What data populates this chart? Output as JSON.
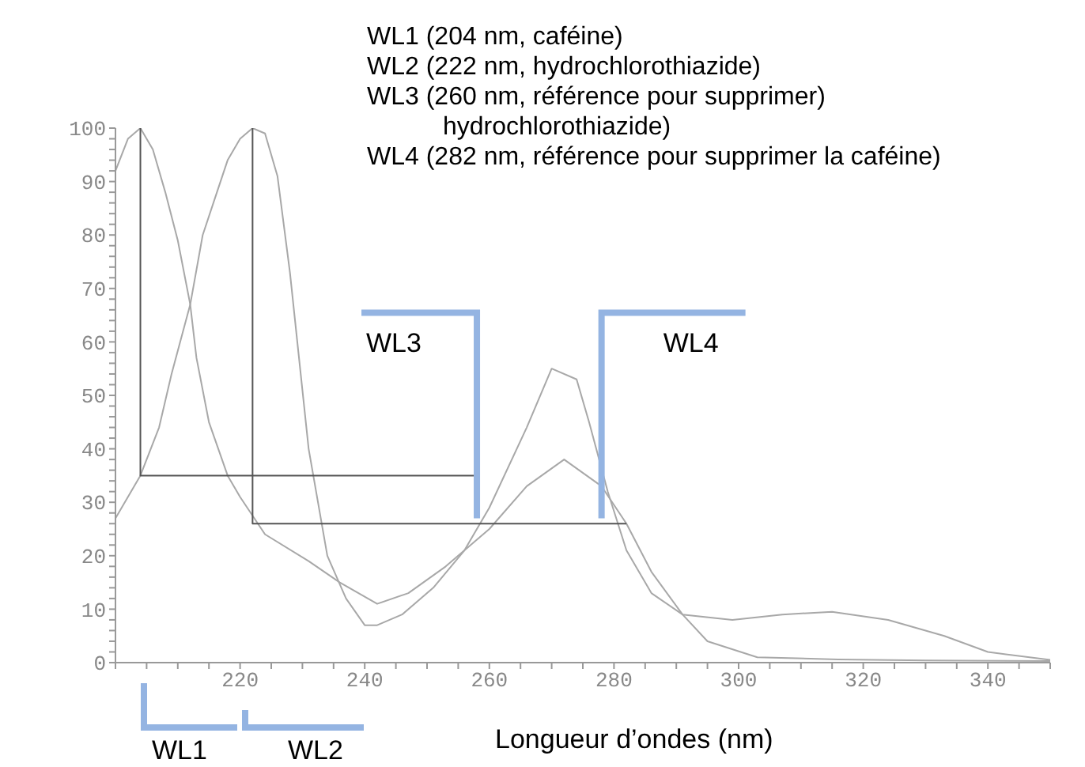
{
  "chart_data": {
    "type": "line",
    "xlabel": "Longueur d’ondes (nm)",
    "marker": "none",
    "grid": false,
    "annotations": [
      "WL1 (204 nm, caféine)\nWL2 (222 nm, hydrochlorothiazide)\nWL3 (260 nm, référence pour supprimer)\nhydrochlorothiazide)\nWL4 (282 nm, référence pour supprimer la caféine)",
      {
        "text": "WL3",
        "x": 258,
        "y": 27
      },
      {
        "text": "WL4",
        "x": 278,
        "y": 27
      },
      "WL1",
      "WL2"
    ],
    "xlim": [
      200,
      350
    ],
    "xticks": [
      {
        "value": 200,
        "label": null
      },
      {
        "value": 205,
        "label": null
      },
      {
        "value": 210,
        "label": null
      },
      {
        "value": 215,
        "label": null
      },
      220,
      {
        "value": 225,
        "label": null
      },
      {
        "value": 230,
        "label": null
      },
      {
        "value": 235,
        "label": null
      },
      240,
      {
        "value": 245,
        "label": null
      },
      {
        "value": 250,
        "label": null
      },
      {
        "value": 255,
        "label": null
      },
      260,
      {
        "value": 265,
        "label": null
      },
      {
        "value": 270,
        "label": null
      },
      {
        "value": 275,
        "label": null
      },
      280,
      {
        "value": 285,
        "label": null
      },
      {
        "value": 290,
        "label": null
      },
      {
        "value": 295,
        "label": null
      },
      300,
      {
        "value": 305,
        "label": null
      },
      {
        "value": 310,
        "label": null
      },
      {
        "value": 315,
        "label": null
      },
      320,
      {
        "value": 325,
        "label": null
      },
      {
        "value": 330,
        "label": null
      },
      {
        "value": 335,
        "label": null
      },
      340,
      {
        "value": 345,
        "label": null
      },
      {
        "value": 350,
        "label": null
      }
    ],
    "ylim": [
      0,
      100
    ],
    "yticks": [
      0,
      {
        "value": 2,
        "label": null
      },
      {
        "value": 4,
        "label": null
      },
      {
        "value": 6,
        "label": null
      },
      {
        "value": 8,
        "label": null
      },
      10,
      {
        "value": 12,
        "label": null
      },
      {
        "value": 14,
        "label": null
      },
      {
        "value": 16,
        "label": null
      },
      {
        "value": 18,
        "label": null
      },
      20,
      {
        "value": 22,
        "label": null
      },
      {
        "value": 24,
        "label": null
      },
      {
        "value": 26,
        "label": null
      },
      {
        "value": 28,
        "label": null
      },
      30,
      {
        "value": 32,
        "label": null
      },
      {
        "value": 34,
        "label": null
      },
      {
        "value": 36,
        "label": null
      },
      {
        "value": 38,
        "label": null
      },
      40,
      {
        "value": 42,
        "label": null
      },
      {
        "value": 44,
        "label": null
      },
      {
        "value": 46,
        "label": null
      },
      {
        "value": 48,
        "label": null
      },
      50,
      {
        "value": 52,
        "label": null
      },
      {
        "value": 54,
        "label": null
      },
      {
        "value": 56,
        "label": null
      },
      {
        "value": 58,
        "label": null
      },
      60,
      {
        "value": 62,
        "label": null
      },
      {
        "value": 64,
        "label": null
      },
      {
        "value": 66,
        "label": null
      },
      {
        "value": 68,
        "label": null
      },
      70,
      {
        "value": 72,
        "label": null
      },
      {
        "value": 74,
        "label": null
      },
      {
        "value": 76,
        "label": null
      },
      {
        "value": 78,
        "label": null
      },
      80,
      {
        "value": 82,
        "label": null
      },
      {
        "value": 84,
        "label": null
      },
      {
        "value": 86,
        "label": null
      },
      {
        "value": 88,
        "label": null
      },
      90,
      {
        "value": 92,
        "label": null
      },
      {
        "value": 94,
        "label": null
      },
      {
        "value": 96,
        "label": null
      },
      {
        "value": 98,
        "label": null
      },
      100
    ],
    "series": [
      {
        "color": "#a8a8a8",
        "x": [
          200,
          202,
          204,
          206,
          208,
          210,
          212,
          213,
          215,
          218,
          220,
          224,
          231,
          236,
          242,
          247,
          253,
          260,
          266,
          272,
          278,
          282,
          286,
          291,
          295,
          303,
          316,
          330,
          350
        ],
        "values": [
          92,
          98,
          100,
          96,
          88,
          79,
          67,
          57,
          45,
          35,
          31,
          24,
          19,
          15,
          11,
          13,
          18,
          25,
          33,
          38,
          33,
          26,
          17,
          9,
          4,
          1,
          0.6,
          0.4,
          0.3
        ]
      },
      {
        "color": "#a8a8a8",
        "x": [
          200,
          204,
          207,
          209,
          212,
          214,
          216,
          218,
          220,
          222,
          224,
          226,
          228,
          231,
          234,
          237,
          240,
          242,
          246,
          251,
          256,
          260,
          266,
          270,
          274,
          276,
          279,
          282,
          286,
          291,
          299,
          307,
          315,
          324,
          333,
          340,
          350
        ],
        "values": [
          27,
          35,
          44,
          54,
          67,
          80,
          87,
          94,
          98,
          100,
          99,
          91,
          73,
          40,
          20,
          12,
          7,
          7,
          9,
          14,
          21,
          29,
          44,
          55,
          53,
          45,
          32,
          21,
          13,
          9,
          8,
          9,
          9.5,
          8,
          5,
          2,
          0.5
        ]
      },
      {
        "color": "#555555",
        "x": [
          204,
          204,
          258
        ],
        "values": [
          100,
          35,
          35
        ]
      },
      {
        "color": "#555555",
        "x": [
          222,
          222,
          282
        ],
        "values": [
          100,
          26,
          26
        ]
      }
    ]
  }
}
